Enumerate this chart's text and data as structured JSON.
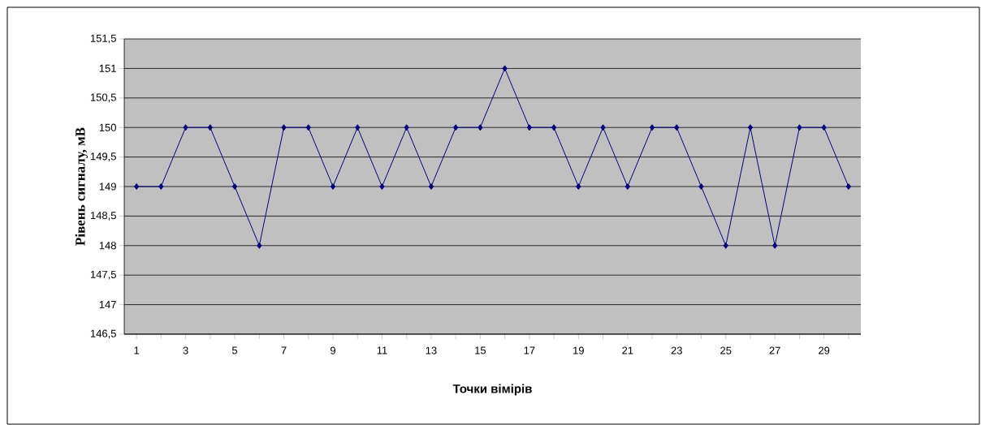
{
  "chart_data": {
    "type": "line",
    "xlabel": "Точки вімірів",
    "ylabel": "Рівень сигналу, мВ",
    "categories": [
      "1",
      null,
      "3",
      null,
      "5",
      null,
      "7",
      null,
      "9",
      null,
      "11",
      null,
      "13",
      null,
      "15",
      null,
      "17",
      null,
      "19",
      null,
      "21",
      null,
      "23",
      null,
      "25",
      null,
      "27",
      null,
      "29",
      null
    ],
    "series": [
      {
        "color": "#000080",
        "values": [
          149,
          149,
          150,
          150,
          149,
          148,
          150,
          150,
          149,
          150,
          149,
          150,
          149,
          150,
          150,
          151,
          150,
          150,
          149,
          150,
          149,
          150,
          150,
          149,
          148,
          150,
          148,
          150,
          150,
          149
        ]
      }
    ],
    "ylim": [
      146.5,
      151.5
    ],
    "yticks": [
      {
        "value": 146.5,
        "label": "146,5"
      },
      147,
      {
        "value": 147.5,
        "label": "147,5"
      },
      148,
      {
        "value": 148.5,
        "label": "148,5"
      },
      149,
      {
        "value": 149.5,
        "label": "149,5"
      },
      150,
      {
        "value": 150.5,
        "label": "150,5"
      },
      151,
      {
        "value": 151.5,
        "label": "151,5"
      }
    ],
    "grid": "y",
    "marker": "diamond",
    "line_style": "solid"
  }
}
